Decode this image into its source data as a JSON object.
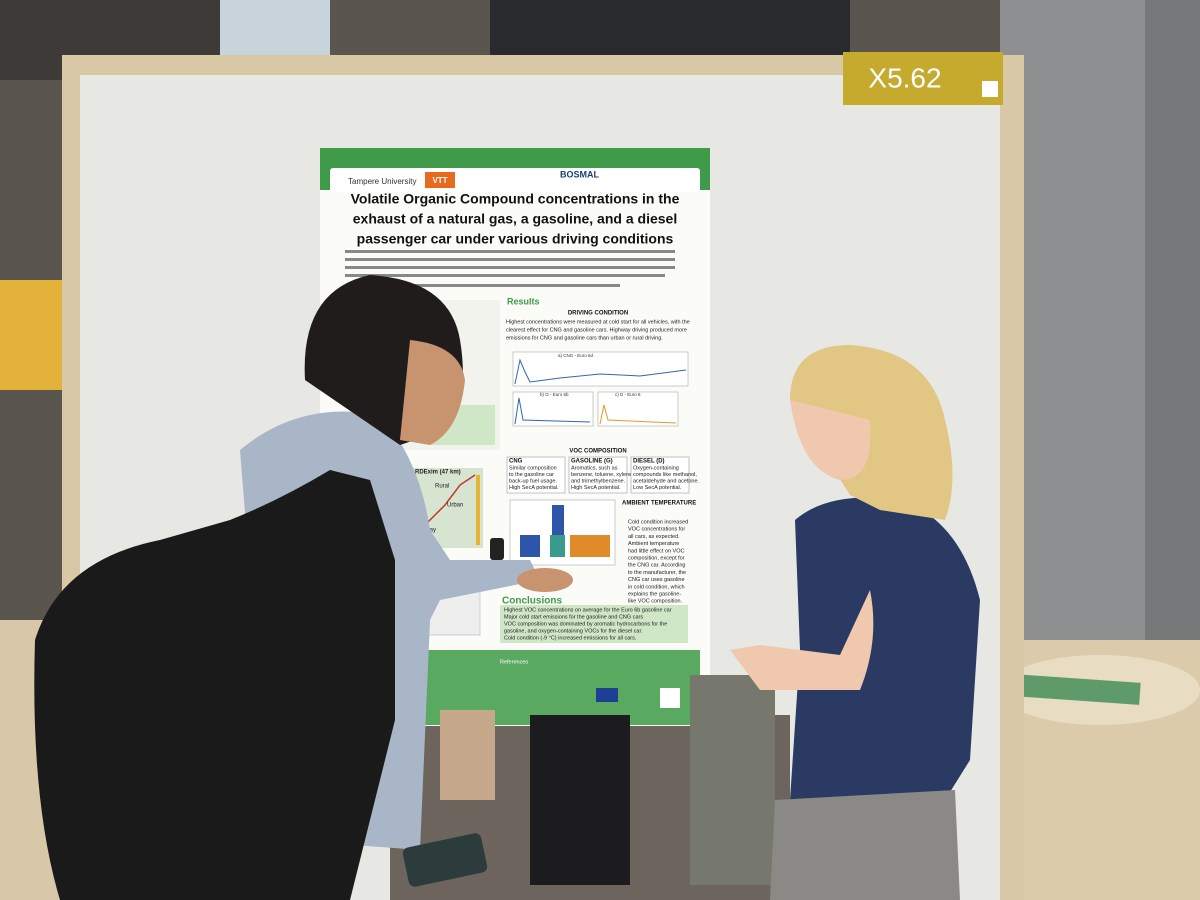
{
  "board": {
    "label": "X5.62"
  },
  "poster": {
    "logos": [
      "Tampere University",
      "VTT",
      "BOSMAL"
    ],
    "title": [
      "Volatile Organic Compound concentrations in the",
      "exhaust of a natural gas, a gasoline, and a diesel",
      "passenger car under various driving conditions"
    ],
    "results": {
      "heading": "Results",
      "driving": {
        "heading": "DRIVING CONDITION",
        "lines": [
          "Highest concentrations were measured at cold start for all vehicles, with the",
          "clearest effect for CNG and gasoline cars. Highway driving produced more",
          "emissions for CNG and gasoline cars than urban or rural driving."
        ]
      },
      "panels": [
        "a) CNG - Euro 6d",
        "b) G - Euro 6b",
        "c) D - Euro 6"
      ],
      "composition": {
        "heading": "VOC COMPOSITION",
        "boxes": [
          {
            "name": "CNG",
            "lines": [
              "Similar composition",
              "to the gasoline car",
              "back-up fuel usage.",
              "High SecA potential."
            ]
          },
          {
            "name": "GASOLINE (G)",
            "lines": [
              "Aromatics, such as",
              "benzene, toluene, xylene",
              "and trimethylbenzene.",
              "High SecA potential."
            ]
          },
          {
            "name": "DIESEL (D)",
            "lines": [
              "Oxygen-containing",
              "compounds like methanol,",
              "acetaldehyde and acetone.",
              "Low SecA potential."
            ]
          }
        ]
      },
      "ambient": {
        "heading": "AMBIENT TEMPERATURE",
        "lines": [
          "Cold condition increased",
          "VOC concentrations for",
          "all cars, as expected.",
          "Ambient temperature",
          "had little effect on VOC",
          "composition, except for",
          "the CNG car. According",
          "to the manufacturer, the",
          "CNG car uses gasoline",
          "in cold condition, which",
          "explains the gasoline-",
          "like VOC composition."
        ]
      }
    },
    "map": {
      "title": "RDExim (47 km)",
      "labels": [
        "Rural",
        "Urban",
        "Highway"
      ]
    },
    "conclusions": {
      "heading": "Conclusions",
      "bullets": [
        "Highest VOC concentrations on average for the Euro 6b gasoline car",
        "Major cold start emissions for the gasoline and CNG cars",
        "VOC composition was dominated by aromatic hydrocarbons for the",
        "gasoline, and oxygen-containing VOCs for the diesel car.",
        "Cold condition (-9 °C) increased emissions for all cars."
      ]
    },
    "footer": {
      "references": "References"
    }
  }
}
